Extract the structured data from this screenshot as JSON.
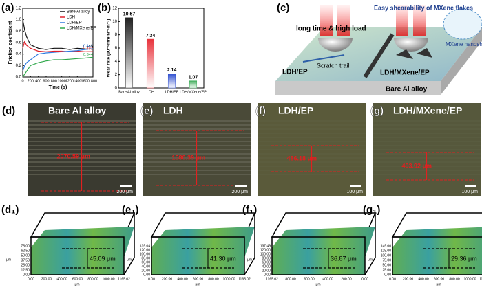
{
  "chart_data": [
    {
      "type": "line",
      "panel": "(a)",
      "xlabel": "Time (s)",
      "ylabel": "Friction coefficient",
      "x": [
        0,
        50,
        100,
        200,
        400,
        600,
        800,
        1000,
        1200,
        1400,
        1600,
        1800
      ],
      "series": [
        {
          "name": "Bare Al alloy",
          "color": "#111111",
          "values": [
            1.0,
            0.82,
            0.7,
            0.56,
            0.5,
            0.48,
            0.5,
            0.5,
            0.48,
            0.5,
            0.49,
            0.485
          ]
        },
        {
          "name": "LDH",
          "color": "#e0202a",
          "values": [
            0.5,
            0.62,
            0.55,
            0.5,
            0.45,
            0.44,
            0.45,
            0.45,
            0.44,
            0.45,
            0.44,
            0.442
          ]
        },
        {
          "name": "LDH/EP",
          "color": "#2f7be0",
          "values": [
            0.1,
            0.2,
            0.25,
            0.3,
            0.4,
            0.42,
            0.43,
            0.44,
            0.45,
            0.46,
            0.48,
            0.493
          ]
        },
        {
          "name": "LDH/MXene/EP",
          "color": "#2ea84a",
          "values": [
            0.0,
            0.05,
            0.1,
            0.2,
            0.25,
            0.28,
            0.3,
            0.3,
            0.31,
            0.32,
            0.33,
            0.344
          ]
        }
      ],
      "annotations": [
        "0.485",
        "0.493",
        "0.442",
        "0.344"
      ],
      "xlim": [
        0,
        1800
      ],
      "xticks": [
        0,
        200,
        400,
        600,
        800,
        1000,
        1200,
        1400,
        1600,
        1800
      ],
      "ylim": [
        0,
        1.2
      ],
      "yticks": [
        {
          "value": 0,
          "label": "0.0"
        },
        0.2,
        0.4,
        0.6,
        0.8,
        {
          "value": 1,
          "label": "1.0"
        },
        1.2
      ],
      "legend": "upper right"
    },
    {
      "type": "bar",
      "panel": "(b)",
      "ylabel": "Wear rate (10⁻⁵mm³N⁻¹m⁻¹)",
      "categories": [
        "Bare Al alloy",
        "LDH",
        "LDH/EP",
        "LDH/MXene/EP"
      ],
      "values": [
        10.57,
        7.34,
        2.14,
        1.07
      ],
      "colors": [
        "#222222",
        "#e8333c",
        "#2f4fd0",
        "#3fae5a"
      ],
      "ylim": [
        0,
        12
      ],
      "yticks": [
        0,
        2,
        4,
        6,
        8,
        10,
        12
      ]
    }
  ],
  "schematic": {
    "panel": "(c)",
    "shear": "Easy shearability of MXene flakes",
    "load": "long time & high load",
    "nanosheets": "MXene nanosheets",
    "left": "LDH/EP",
    "scratch": "Scratch trail",
    "right": "LDH/MXene/EP",
    "base": "Bare Al alloy"
  },
  "micrographs": [
    {
      "panel": "(d)",
      "title": "Bare Al alloy",
      "width": "2070.59 μm",
      "scale": "200 μm"
    },
    {
      "panel": "(e)",
      "title": "LDH",
      "width": "1580.39 μm",
      "scale": "200 μm"
    },
    {
      "panel": "(f)",
      "title": "LDH/EP",
      "width": "486.18 μm",
      "scale": "100 μm"
    },
    {
      "panel": "(g)",
      "title": "LDH/MXene/EP",
      "width": "403.92 μm",
      "scale": "100 μm"
    }
  ],
  "profiles": [
    {
      "panel": "(d₁)",
      "depth": "45.09 μm",
      "unit": "μm",
      "zticks": [
        "75.00",
        "62.50",
        "50.00",
        "37.50",
        "25.00",
        "12.50",
        "0.00"
      ],
      "xticks": [
        "0.00",
        "200.00",
        "400.00",
        "600.00",
        "800.00",
        "1000.00",
        "1165.02"
      ]
    },
    {
      "panel": "(e₁)",
      "depth": "41.30 μm",
      "unit": "μm",
      "zticks": [
        "139.64",
        "120.00",
        "100.00",
        "80.00",
        "60.00",
        "40.00",
        "20.00",
        "0.00"
      ],
      "xticks": [
        "0.00",
        "200.00",
        "400.00",
        "600.00",
        "800.00",
        "1000.00",
        "1165.02"
      ]
    },
    {
      "panel": "(f₁)",
      "depth": "36.87 μm",
      "unit": "μm",
      "zticks": [
        "137.49",
        "120.00",
        "100.00",
        "80.00",
        "60.00",
        "40.00",
        "20.00",
        "0.00"
      ],
      "xticks": [
        "1165.02",
        "800.00",
        "600.00",
        "400.00",
        "200.00",
        "0.00"
      ]
    },
    {
      "panel": "(g₁)",
      "depth": "29.36 μm",
      "unit": "μm",
      "zticks": [
        "149.00",
        "125.00",
        "100.00",
        "75.00",
        "50.00",
        "25.00",
        "0.00"
      ],
      "xticks": [
        "0.00",
        "200.00",
        "400.00",
        "600.00",
        "800.00",
        "1000.00",
        "1165.02"
      ]
    }
  ]
}
